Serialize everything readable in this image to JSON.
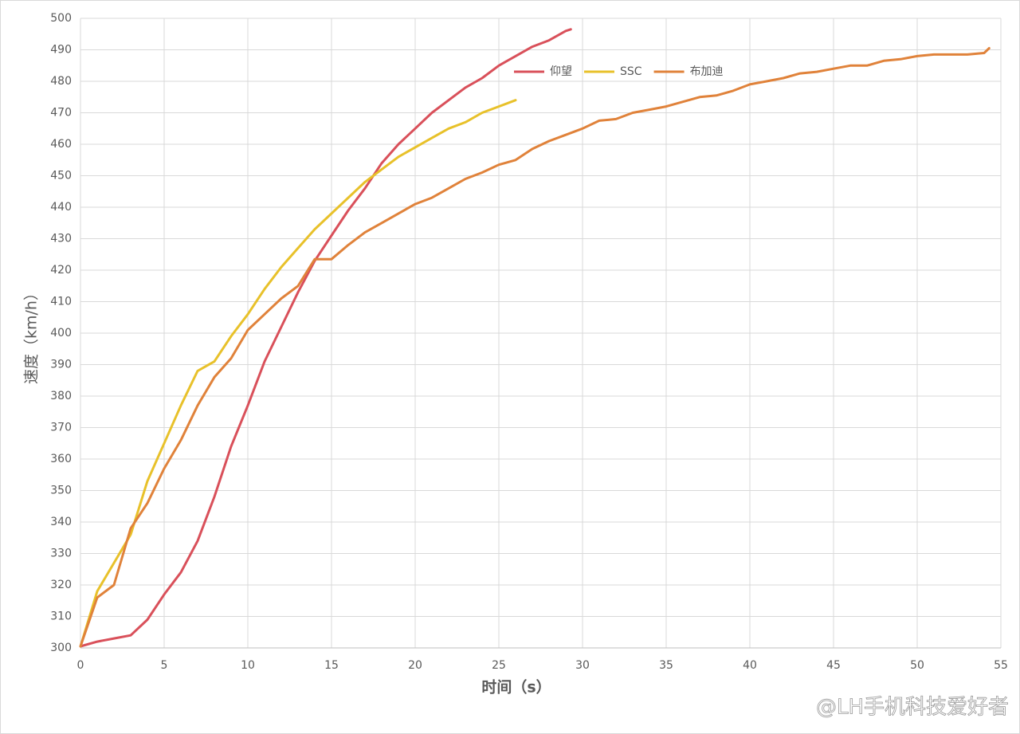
{
  "chart_data": {
    "type": "line",
    "xlabel": "时间（s）",
    "ylabel": "速度（km/h）",
    "xlim": [
      0,
      55
    ],
    "xticks": [
      0,
      5,
      10,
      15,
      20,
      25,
      30,
      35,
      40,
      45,
      50,
      55
    ],
    "ylim": [
      300,
      500
    ],
    "yticks": [
      300,
      310,
      320,
      330,
      340,
      350,
      360,
      370,
      380,
      390,
      400,
      410,
      420,
      430,
      440,
      450,
      460,
      470,
      480,
      490,
      500
    ],
    "grid": true,
    "legend": "top",
    "watermark": "@LH手机科技爱好者",
    "series": [
      {
        "name": "仰望",
        "color": "#d9505a",
        "x": [
          0,
          1,
          2,
          3,
          4,
          5,
          6,
          7,
          8,
          9,
          10,
          11,
          12,
          13,
          14,
          15,
          16,
          17,
          18,
          19,
          20,
          21,
          22,
          23,
          24,
          25,
          26,
          27,
          28,
          29,
          29.3
        ],
        "values": [
          300.5,
          302,
          303,
          304,
          309,
          317,
          324,
          334,
          348,
          364,
          377,
          391,
          402,
          413,
          423,
          431,
          439,
          446,
          454,
          460,
          465,
          470,
          474,
          478,
          481,
          485,
          488,
          491,
          493,
          496,
          496.5
        ]
      },
      {
        "name": "SSC",
        "color": "#e8c12a",
        "x": [
          0,
          1,
          2,
          3,
          4,
          5,
          6,
          7,
          8,
          9,
          10,
          11,
          12,
          13,
          14,
          15,
          16,
          17,
          18,
          19,
          20,
          21,
          22,
          23,
          24,
          25,
          26
        ],
        "values": [
          300.5,
          318,
          327,
          336,
          353,
          365,
          377,
          388,
          391,
          399,
          406,
          414,
          421,
          427,
          433,
          438,
          443,
          448,
          452,
          456,
          459,
          462,
          465,
          467,
          470,
          472,
          474
        ]
      },
      {
        "name": "布加迪",
        "color": "#e0823a",
        "x": [
          0,
          1,
          2,
          3,
          4,
          5,
          6,
          7,
          8,
          9,
          10,
          11,
          12,
          13,
          14,
          15,
          16,
          17,
          18,
          19,
          20,
          21,
          22,
          23,
          24,
          25,
          26,
          27,
          28,
          29,
          30,
          31,
          32,
          33,
          34,
          35,
          36,
          37,
          38,
          39,
          40,
          41,
          42,
          43,
          44,
          45,
          46,
          47,
          48,
          49,
          50,
          51,
          52,
          53,
          54,
          54.3
        ],
        "values": [
          300.5,
          316,
          320,
          338,
          346,
          357,
          366,
          377,
          386,
          392,
          401,
          406,
          411,
          415,
          423.5,
          423.5,
          428,
          432,
          435,
          438,
          441,
          443,
          446,
          449,
          451,
          453.5,
          455,
          458.5,
          461,
          463,
          465,
          467.5,
          468,
          470,
          471,
          472,
          473.5,
          475,
          475.5,
          477,
          479,
          480,
          481,
          482.5,
          483,
          484,
          485,
          485,
          486.5,
          487,
          488,
          488.5,
          488.5,
          488.5,
          489,
          490.5
        ]
      }
    ]
  }
}
